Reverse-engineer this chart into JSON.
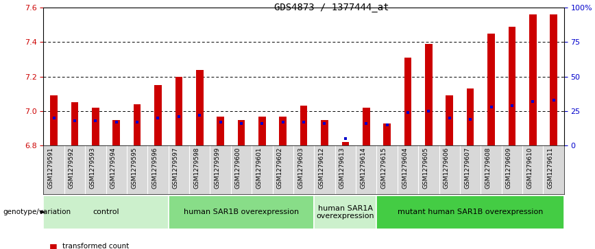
{
  "title": "GDS4873 / 1377444_at",
  "samples": [
    "GSM1279591",
    "GSM1279592",
    "GSM1279593",
    "GSM1279594",
    "GSM1279595",
    "GSM1279596",
    "GSM1279597",
    "GSM1279598",
    "GSM1279599",
    "GSM1279600",
    "GSM1279601",
    "GSM1279602",
    "GSM1279603",
    "GSM1279612",
    "GSM1279613",
    "GSM1279614",
    "GSM1279615",
    "GSM1279604",
    "GSM1279605",
    "GSM1279606",
    "GSM1279607",
    "GSM1279608",
    "GSM1279609",
    "GSM1279610",
    "GSM1279611"
  ],
  "transformed_count": [
    7.09,
    7.05,
    7.02,
    6.95,
    7.04,
    7.15,
    7.2,
    7.24,
    6.97,
    6.95,
    6.97,
    6.97,
    7.03,
    6.95,
    6.82,
    7.02,
    6.93,
    7.31,
    7.39,
    7.09,
    7.13,
    7.45,
    7.49,
    7.56,
    7.56
  ],
  "percentile_rank": [
    20,
    18,
    18,
    17,
    17,
    20,
    21,
    22,
    17,
    16,
    16,
    17,
    17,
    16,
    5,
    16,
    15,
    24,
    25,
    20,
    19,
    28,
    29,
    32,
    33
  ],
  "baseline": 6.8,
  "ylim_left": [
    6.8,
    7.6
  ],
  "ylim_right": [
    0,
    100
  ],
  "yticks_left": [
    6.8,
    7.0,
    7.2,
    7.4,
    7.6
  ],
  "yticks_right_vals": [
    0,
    25,
    50,
    75,
    100
  ],
  "yticks_right_labels": [
    "0",
    "25",
    "50",
    "75",
    "100%"
  ],
  "groups": [
    {
      "label": "control",
      "start": 0,
      "end": 5,
      "color": "#ccf0cc"
    },
    {
      "label": "human SAR1B overexpression",
      "start": 6,
      "end": 12,
      "color": "#88dd88"
    },
    {
      "label": "human SAR1A\noverexpression",
      "start": 13,
      "end": 15,
      "color": "#ccf0cc"
    },
    {
      "label": "mutant human SAR1B overexpression",
      "start": 16,
      "end": 24,
      "color": "#44cc44"
    }
  ],
  "bar_color": "#cc0000",
  "dot_color": "#0000cc",
  "bar_width": 0.35,
  "tick_label_size": 6.5,
  "group_label_size": 8,
  "title_fontsize": 10,
  "left_axis_color": "#cc0000",
  "right_axis_color": "#0000cc"
}
